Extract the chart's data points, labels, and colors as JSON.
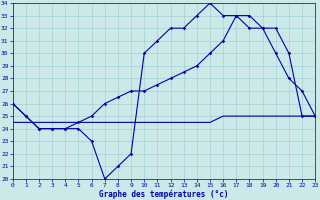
{
  "xlabel": "Graphe des températures (°c)",
  "bg_color": "#cce8e8",
  "line_color": "#0000aa",
  "grid_color": "#99cccc",
  "ylim": [
    20,
    34
  ],
  "xlim": [
    0,
    23
  ],
  "ytick_vals": [
    20,
    21,
    22,
    23,
    24,
    25,
    26,
    27,
    28,
    29,
    30,
    31,
    32,
    33,
    34
  ],
  "xtick_vals": [
    0,
    1,
    2,
    3,
    4,
    5,
    6,
    7,
    8,
    9,
    10,
    11,
    12,
    13,
    14,
    15,
    16,
    17,
    18,
    19,
    20,
    21,
    22,
    23
  ],
  "curve1_x": [
    0,
    1,
    2,
    3,
    4,
    5,
    6,
    7,
    8,
    9,
    10,
    11,
    12,
    13,
    14,
    15,
    16,
    17,
    18,
    19,
    20,
    21,
    22,
    23
  ],
  "curve1_y": [
    26,
    25,
    24,
    24,
    24,
    24,
    23,
    20,
    21,
    22,
    30,
    31,
    32,
    32,
    33,
    34,
    33,
    33,
    32,
    32,
    30,
    28,
    27,
    25
  ],
  "curve2_x": [
    0,
    1,
    2,
    3,
    4,
    5,
    6,
    7,
    8,
    9,
    10,
    11,
    12,
    13,
    14,
    15,
    16,
    17,
    18,
    19,
    20,
    21,
    22,
    23
  ],
  "curve2_y": [
    26,
    25,
    24,
    24,
    24,
    24.5,
    25,
    26,
    26.5,
    27,
    27,
    27.5,
    28,
    28.5,
    29,
    30,
    31,
    33,
    33,
    32,
    32,
    30,
    25,
    25
  ],
  "curve3_x": [
    0,
    8,
    9,
    10,
    11,
    12,
    13,
    14,
    15,
    16,
    17,
    18,
    19,
    20,
    21,
    22,
    23
  ],
  "curve3_y": [
    24.5,
    24.5,
    24.5,
    24.5,
    24.5,
    24.5,
    24.5,
    24.5,
    24.5,
    25,
    25,
    25,
    25,
    25,
    25,
    25,
    25
  ]
}
